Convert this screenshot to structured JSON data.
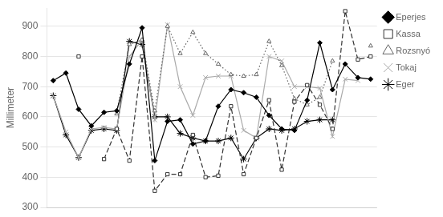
{
  "chart_data": {
    "type": "line",
    "ylabel": "Millimeter",
    "categories": [
      null,
      null,
      null,
      null,
      null,
      null,
      null,
      null,
      null,
      null,
      null,
      null,
      null,
      null,
      null,
      null,
      null,
      null,
      null,
      null,
      null,
      null,
      null,
      null,
      null,
      null
    ],
    "series": [
      {
        "name": "Eperjes",
        "color": "black",
        "marker": "diamond",
        "line_style": "solid",
        "values": [
          720,
          745,
          625,
          570,
          615,
          620,
          775,
          895,
          455,
          585,
          590,
          510,
          520,
          635,
          690,
          680,
          665,
          605,
          560,
          555,
          655,
          845,
          690,
          775,
          730,
          725
        ]
      },
      {
        "name": "Kassa",
        "color": "#333333",
        "marker": "open_square",
        "line_style": "dashed",
        "values": [
          null,
          null,
          800,
          null,
          460,
          560,
          455,
          800,
          355,
          410,
          410,
          540,
          400,
          405,
          635,
          410,
          530,
          655,
          425,
          650,
          705,
          640,
          560,
          950,
          790,
          800
        ]
      },
      {
        "name": "Rozsnyó",
        "color": "#666666",
        "marker": "open_triangle",
        "line_style": "dotted",
        "values": [
          null,
          null,
          null,
          null,
          null,
          610,
          840,
          855,
          620,
          900,
          810,
          880,
          810,
          775,
          740,
          735,
          740,
          850,
          770,
          660,
          640,
          665,
          785,
          null,
          null,
          835
        ]
      },
      {
        "name": "Tokaj",
        "color": "#aaaaaa",
        "marker": "x",
        "line_style": "solid",
        "values": [
          670,
          550,
          465,
          560,
          565,
          560,
          800,
          855,
          590,
          905,
          700,
          605,
          730,
          735,
          735,
          555,
          530,
          800,
          785,
          700,
          700,
          695,
          535,
          725,
          720,
          null
        ]
      },
      {
        "name": "Eger",
        "color": "black",
        "marker": "star",
        "line_style": "solid",
        "values": [
          670,
          540,
          465,
          555,
          560,
          555,
          850,
          840,
          600,
          600,
          545,
          530,
          520,
          520,
          530,
          460,
          530,
          560,
          555,
          560,
          585,
          590,
          590,
          null,
          null,
          null
        ]
      }
    ],
    "ylim": [
      300,
      960
    ],
    "yticks": [
      300,
      400,
      500,
      600,
      700,
      800,
      900
    ],
    "grid": "y",
    "legend": "right",
    "tick_labels": "y"
  }
}
